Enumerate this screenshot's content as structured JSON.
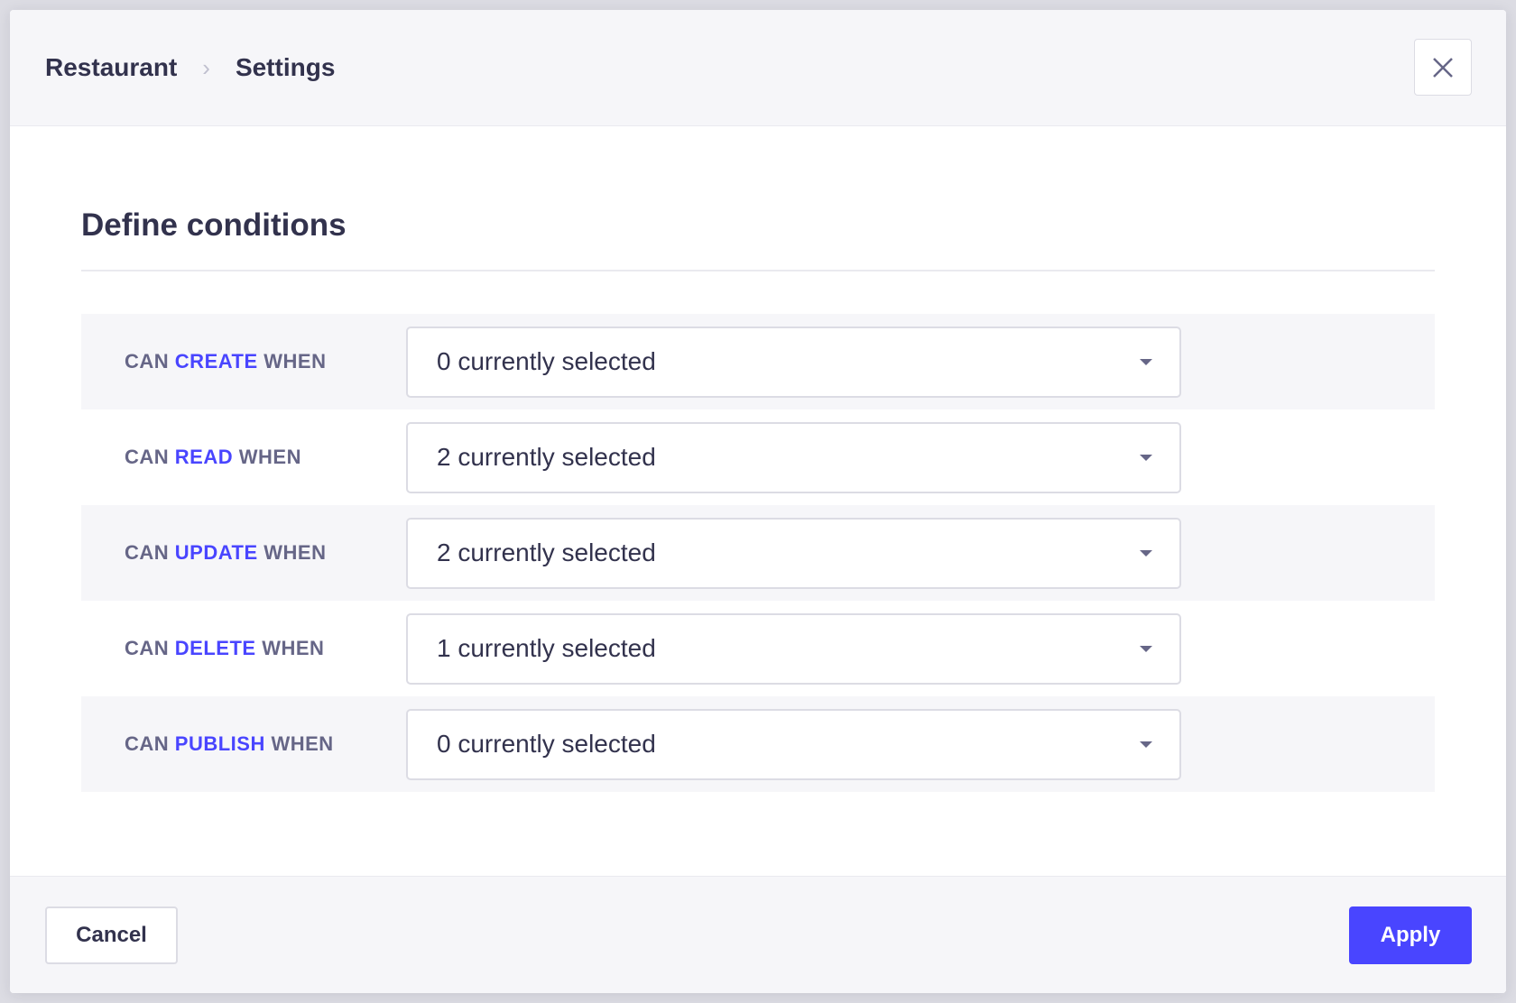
{
  "header": {
    "breadcrumb": [
      "Restaurant",
      "Settings"
    ],
    "close_icon": "close-icon"
  },
  "main": {
    "title": "Define conditions",
    "rows": [
      {
        "prefix": "CAN",
        "action": "CREATE",
        "suffix": "WHEN",
        "value": "0 currently selected"
      },
      {
        "prefix": "CAN",
        "action": "READ",
        "suffix": "WHEN",
        "value": "2 currently selected"
      },
      {
        "prefix": "CAN",
        "action": "UPDATE",
        "suffix": "WHEN",
        "value": "2 currently selected"
      },
      {
        "prefix": "CAN",
        "action": "DELETE",
        "suffix": "WHEN",
        "value": "1 currently selected"
      },
      {
        "prefix": "CAN",
        "action": "PUBLISH",
        "suffix": "WHEN",
        "value": "0 currently selected"
      }
    ]
  },
  "footer": {
    "cancel_label": "Cancel",
    "apply_label": "Apply"
  },
  "colors": {
    "accent": "#4945ff",
    "text": "#32324d",
    "muted": "#666687"
  }
}
